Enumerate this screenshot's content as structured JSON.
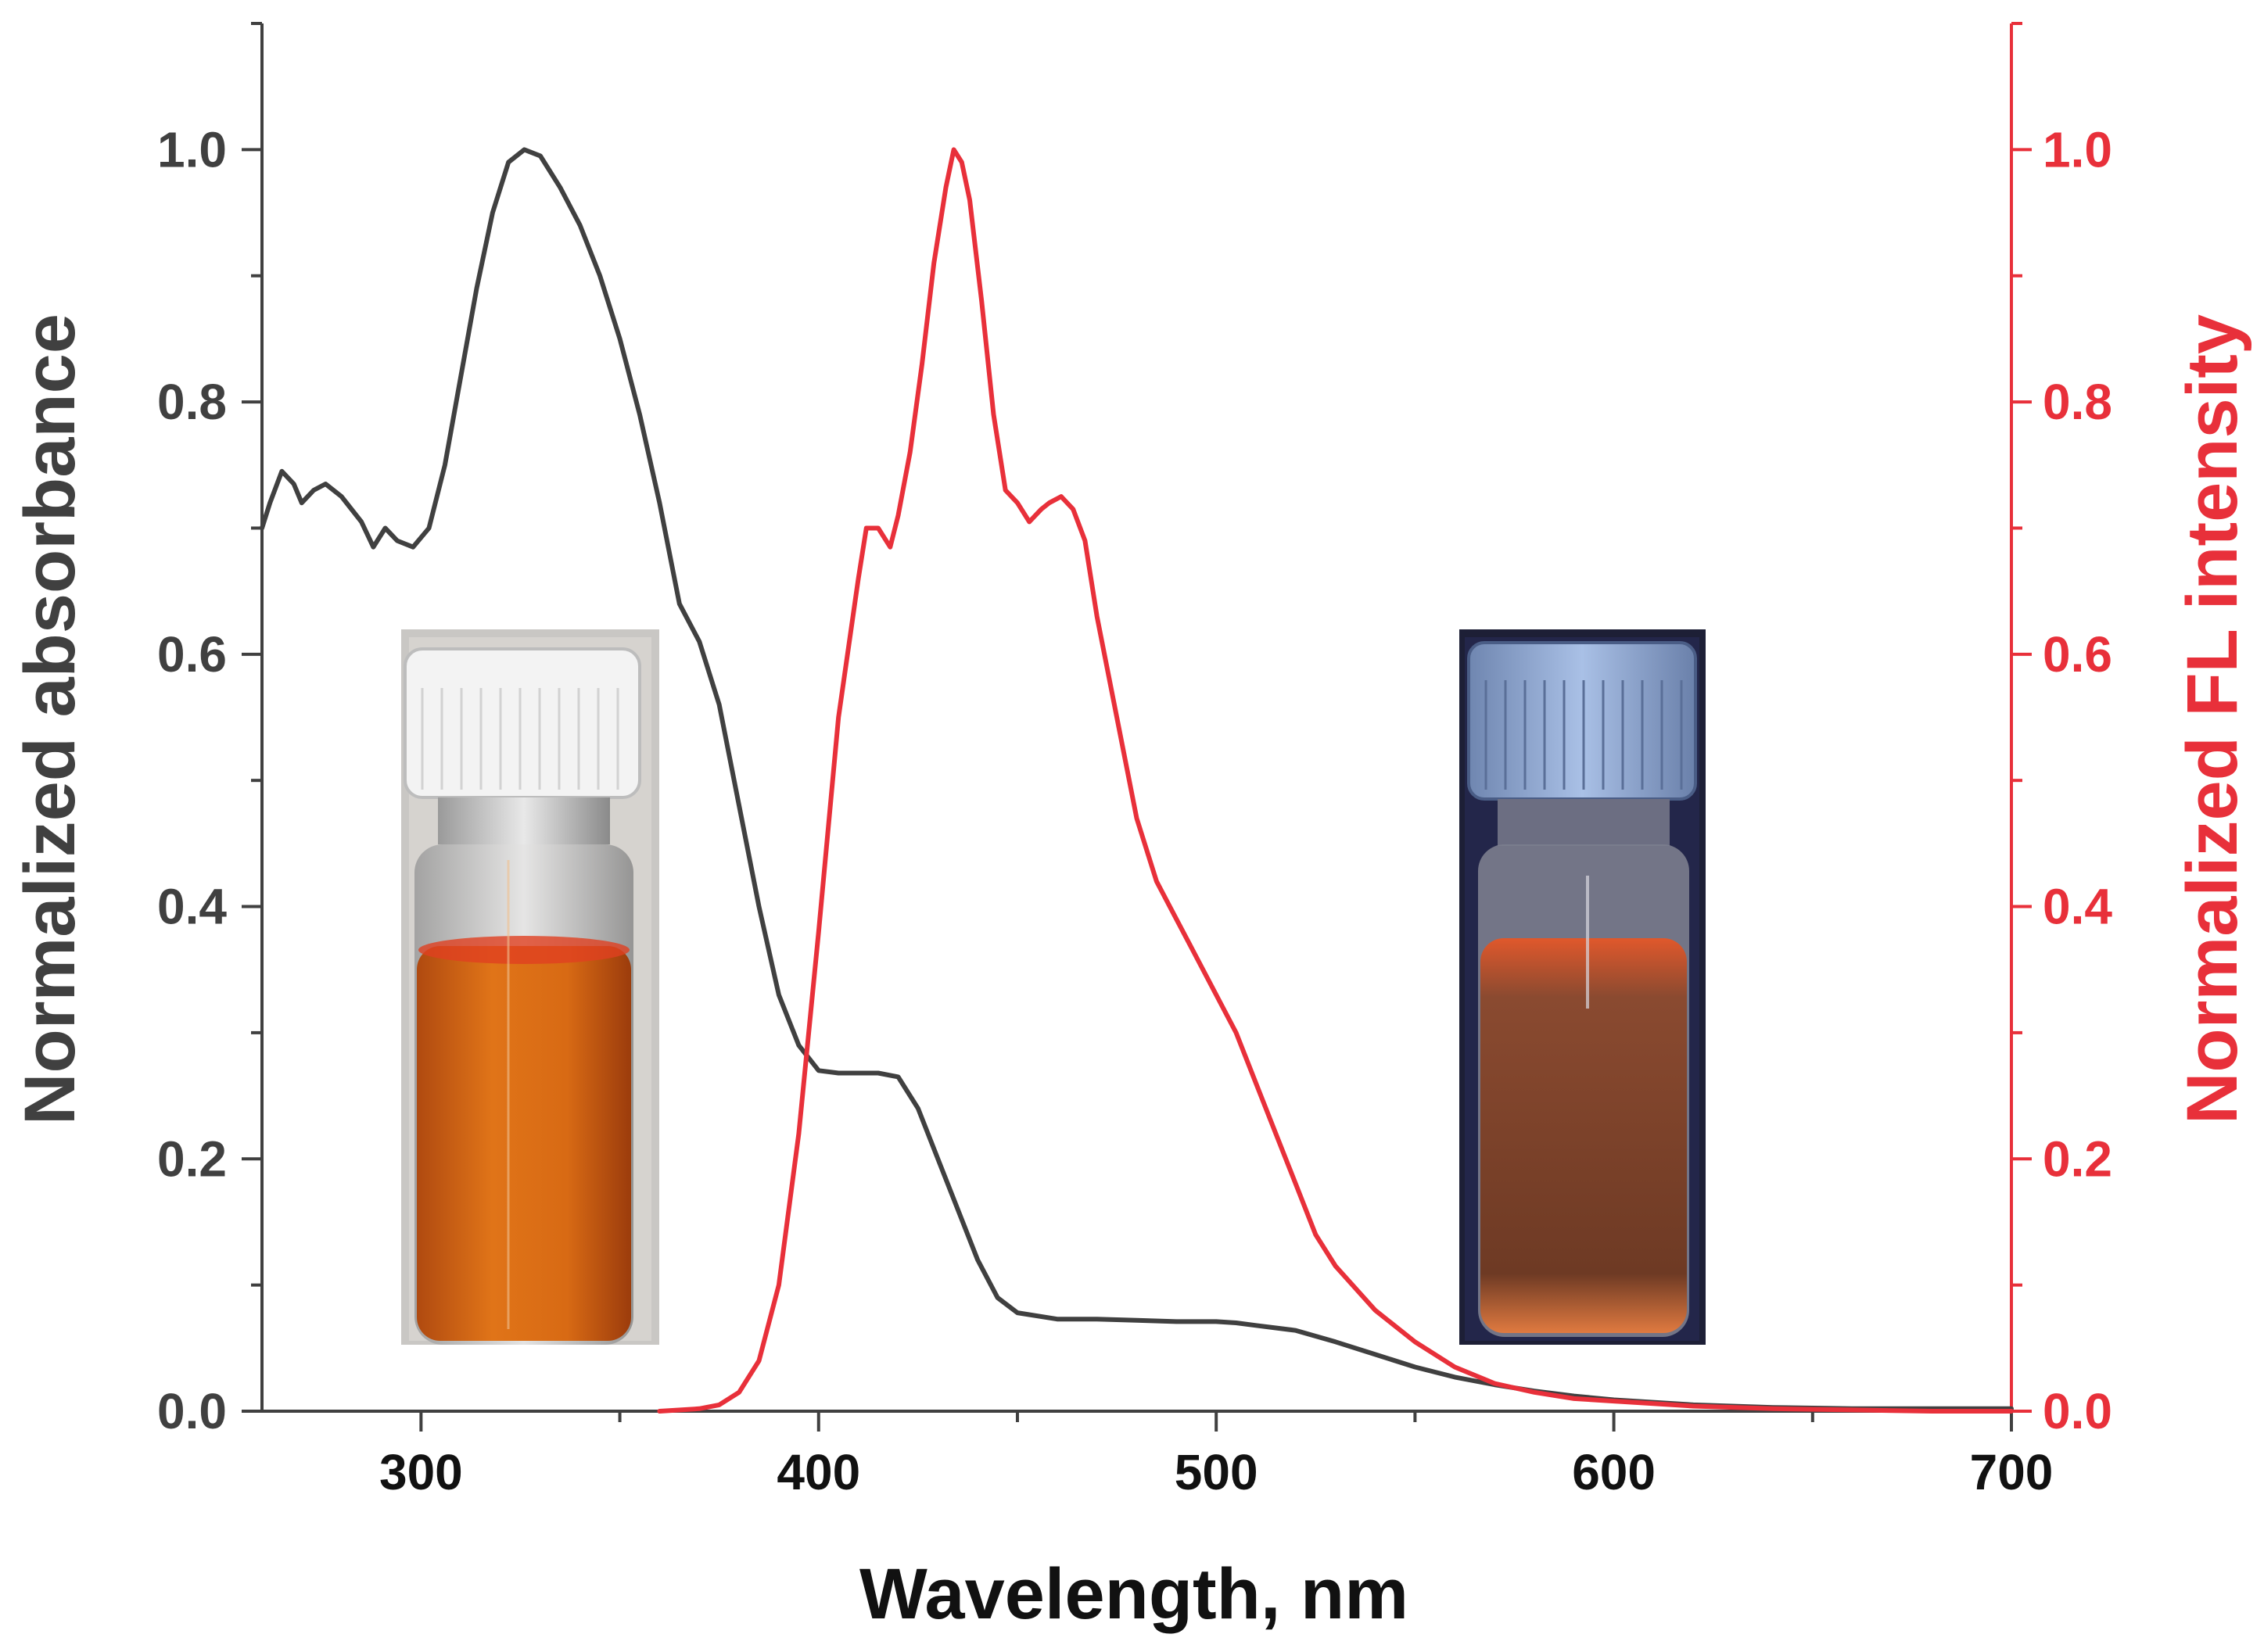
{
  "chart_data": {
    "type": "line",
    "xlabel": "Wavelength, nm",
    "ylabel": "Normalized absorbance",
    "y2label": "Normalized FL intensity",
    "xlim": [
      260,
      700
    ],
    "ylim": [
      0,
      1.1
    ],
    "y2lim": [
      0,
      1.1
    ],
    "x_ticks": [
      300,
      400,
      500,
      600,
      700
    ],
    "y_ticks": [
      0.0,
      0.2,
      0.4,
      0.6,
      0.8,
      1.0
    ],
    "y2_ticks": [
      0.0,
      0.2,
      0.4,
      0.6,
      0.8,
      1.0
    ],
    "colors": {
      "absorbance": "#404040",
      "fluorescence": "#e8303a",
      "axis": "#404040",
      "right_axis": "#e8303a"
    },
    "series": [
      {
        "name": "Normalized absorbance",
        "axis": "left",
        "color": "#404040",
        "points": [
          [
            260,
            0.7
          ],
          [
            262,
            0.72
          ],
          [
            265,
            0.745
          ],
          [
            268,
            0.735
          ],
          [
            270,
            0.72
          ],
          [
            273,
            0.73
          ],
          [
            276,
            0.735
          ],
          [
            280,
            0.725
          ],
          [
            285,
            0.705
          ],
          [
            288,
            0.685
          ],
          [
            291,
            0.7
          ],
          [
            294,
            0.69
          ],
          [
            298,
            0.685
          ],
          [
            302,
            0.7
          ],
          [
            306,
            0.75
          ],
          [
            310,
            0.82
          ],
          [
            314,
            0.89
          ],
          [
            318,
            0.95
          ],
          [
            322,
            0.99
          ],
          [
            326,
            1.0
          ],
          [
            330,
            0.995
          ],
          [
            335,
            0.97
          ],
          [
            340,
            0.94
          ],
          [
            345,
            0.9
          ],
          [
            350,
            0.85
          ],
          [
            355,
            0.79
          ],
          [
            360,
            0.72
          ],
          [
            365,
            0.64
          ],
          [
            370,
            0.61
          ],
          [
            375,
            0.56
          ],
          [
            380,
            0.48
          ],
          [
            385,
            0.4
          ],
          [
            390,
            0.33
          ],
          [
            395,
            0.29
          ],
          [
            400,
            0.27
          ],
          [
            405,
            0.268
          ],
          [
            410,
            0.268
          ],
          [
            415,
            0.268
          ],
          [
            420,
            0.265
          ],
          [
            425,
            0.24
          ],
          [
            430,
            0.2
          ],
          [
            435,
            0.16
          ],
          [
            440,
            0.12
          ],
          [
            445,
            0.09
          ],
          [
            450,
            0.078
          ],
          [
            460,
            0.073
          ],
          [
            470,
            0.073
          ],
          [
            480,
            0.072
          ],
          [
            490,
            0.071
          ],
          [
            500,
            0.071
          ],
          [
            505,
            0.07
          ],
          [
            510,
            0.068
          ],
          [
            515,
            0.066
          ],
          [
            520,
            0.064
          ],
          [
            530,
            0.055
          ],
          [
            540,
            0.045
          ],
          [
            550,
            0.035
          ],
          [
            560,
            0.027
          ],
          [
            570,
            0.021
          ],
          [
            580,
            0.016
          ],
          [
            590,
            0.012
          ],
          [
            600,
            0.009
          ],
          [
            620,
            0.005
          ],
          [
            640,
            0.003
          ],
          [
            660,
            0.002
          ],
          [
            680,
            0.002
          ],
          [
            700,
            0.002
          ]
        ]
      },
      {
        "name": "Normalized FL intensity",
        "axis": "right",
        "color": "#e8303a",
        "points": [
          [
            360,
            0.0
          ],
          [
            370,
            0.002
          ],
          [
            375,
            0.005
          ],
          [
            380,
            0.015
          ],
          [
            385,
            0.04
          ],
          [
            390,
            0.1
          ],
          [
            395,
            0.22
          ],
          [
            400,
            0.38
          ],
          [
            405,
            0.55
          ],
          [
            410,
            0.66
          ],
          [
            412,
            0.7
          ],
          [
            415,
            0.7
          ],
          [
            418,
            0.685
          ],
          [
            420,
            0.71
          ],
          [
            423,
            0.76
          ],
          [
            426,
            0.83
          ],
          [
            429,
            0.91
          ],
          [
            432,
            0.97
          ],
          [
            434,
            1.0
          ],
          [
            436,
            0.99
          ],
          [
            438,
            0.96
          ],
          [
            441,
            0.88
          ],
          [
            444,
            0.79
          ],
          [
            447,
            0.73
          ],
          [
            450,
            0.72
          ],
          [
            453,
            0.705
          ],
          [
            456,
            0.715
          ],
          [
            458,
            0.72
          ],
          [
            461,
            0.725
          ],
          [
            464,
            0.715
          ],
          [
            467,
            0.69
          ],
          [
            470,
            0.63
          ],
          [
            475,
            0.55
          ],
          [
            480,
            0.47
          ],
          [
            485,
            0.42
          ],
          [
            490,
            0.39
          ],
          [
            495,
            0.36
          ],
          [
            500,
            0.33
          ],
          [
            505,
            0.3
          ],
          [
            510,
            0.26
          ],
          [
            515,
            0.22
          ],
          [
            520,
            0.18
          ],
          [
            525,
            0.14
          ],
          [
            530,
            0.115
          ],
          [
            540,
            0.08
          ],
          [
            550,
            0.055
          ],
          [
            560,
            0.035
          ],
          [
            570,
            0.022
          ],
          [
            580,
            0.015
          ],
          [
            590,
            0.01
          ],
          [
            600,
            0.008
          ],
          [
            610,
            0.006
          ],
          [
            620,
            0.004
          ],
          [
            640,
            0.002
          ],
          [
            660,
            0.001
          ],
          [
            680,
            0.0
          ],
          [
            700,
            0.0
          ]
        ]
      }
    ],
    "insets": [
      {
        "name": "vial-daylight",
        "description_color": "orange solution, white cap"
      },
      {
        "name": "vial-uv",
        "description_color": "orange-red glowing solution, blue cap"
      }
    ]
  }
}
